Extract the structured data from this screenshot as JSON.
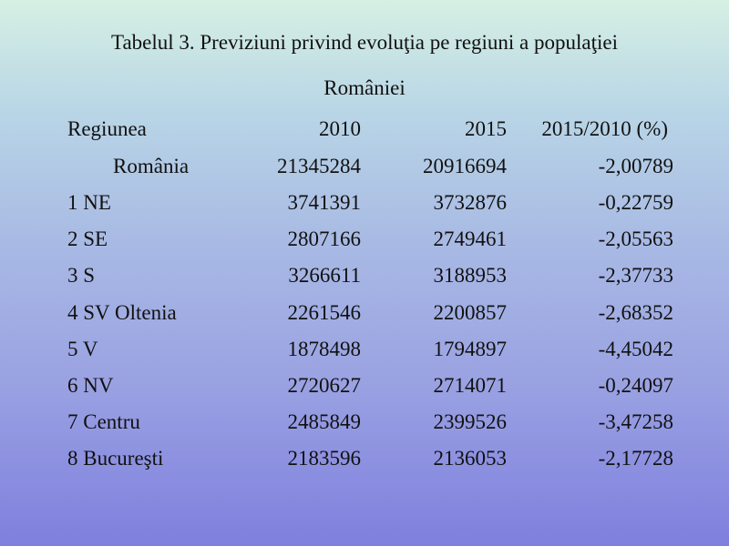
{
  "title": {
    "line1": "Tabelul 3. Previziuni privind evoluţia pe regiuni a populaţiei",
    "line2": "României"
  },
  "table": {
    "headers": [
      "Regiunea",
      "2010",
      "2015",
      "2015/2010 (%)"
    ],
    "rows": [
      {
        "region": "România",
        "v2010": "21345284",
        "v2015": "20916694",
        "pct": "-2,00789"
      },
      {
        "region": "1 NE",
        "v2010": "3741391",
        "v2015": "3732876",
        "pct": "-0,22759"
      },
      {
        "region": "2 SE",
        "v2010": "2807166",
        "v2015": "2749461",
        "pct": "-2,05563"
      },
      {
        "region": "3 S",
        "v2010": "3266611",
        "v2015": "3188953",
        "pct": "-2,37733"
      },
      {
        "region": "4 SV Oltenia",
        "v2010": "2261546",
        "v2015": "2200857",
        "pct": "-2,68352"
      },
      {
        "region": "5 V",
        "v2010": "1878498",
        "v2015": "1794897",
        "pct": "-4,45042"
      },
      {
        "region": "6 NV",
        "v2010": "2720627",
        "v2015": "2714071",
        "pct": "-0,24097"
      },
      {
        "region": "7 Centru",
        "v2010": "2485849",
        "v2015": "2399526",
        "pct": "-3,47258"
      },
      {
        "region": "8 Bucureşti",
        "v2010": "2183596",
        "v2015": "2136053",
        "pct": "-2,17728"
      }
    ]
  }
}
